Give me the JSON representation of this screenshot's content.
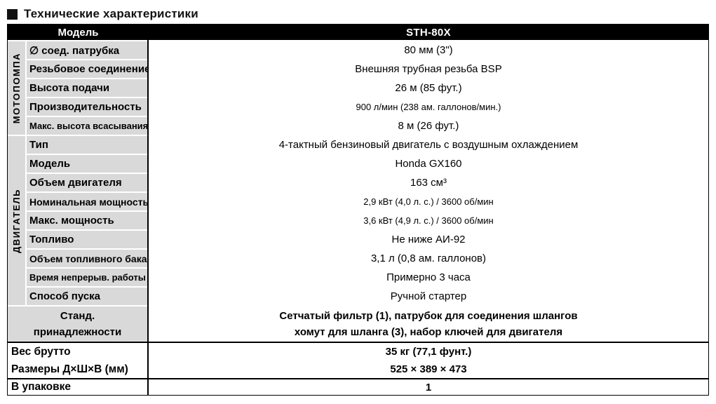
{
  "title": "Технические характеристики",
  "table": {
    "header": {
      "col1": "Модель",
      "col2": "STH-80X"
    },
    "sections": [
      {
        "name": "МОТОПОМПА",
        "rows": [
          {
            "label": "∅ соед. патрубка",
            "value": "80 мм (3\")"
          },
          {
            "label": "Резьбовое соединение",
            "value": "Внешняя трубная резьба BSP"
          },
          {
            "label": "Высота подачи",
            "value": "26 м (85 фут.)"
          },
          {
            "label": "Производительность",
            "value": "900 л/мин (238 ам. галлонов/мин.)"
          },
          {
            "label": "Макс. высота всасывания",
            "value": "8 м (26 фут.)"
          }
        ]
      },
      {
        "name": "ДВИГАТЕЛЬ",
        "rows": [
          {
            "label": "Тип",
            "value": "4-тактный бензиновый двигатель с воздушным охлаждением"
          },
          {
            "label": "Модель",
            "value": "Honda GX160"
          },
          {
            "label": "Объем двигателя",
            "value": "163 см³"
          },
          {
            "label": "Номинальная мощность",
            "value": "2,9 кВт (4,0 л. с.) / 3600 об/мин"
          },
          {
            "label": "Макс. мощность",
            "value": "3,6 кВт (4,9 л. с.) / 3600 об/мин"
          },
          {
            "label": "Топливо",
            "value": "Не ниже АИ-92"
          },
          {
            "label": "Объем топливного бака",
            "value": "3,1 л (0,8 ам. галлонов)"
          },
          {
            "label": "Время непрерыв. работы",
            "value": "Примерно 3 часа"
          },
          {
            "label": "Способ пуска",
            "value": "Ручной стартер"
          }
        ]
      }
    ],
    "accessories": {
      "label_line1": "Станд.",
      "label_line2": "принадлежности",
      "value_line1": "Сетчатый фильтр (1), патрубок для соединения шлангов",
      "value_line2": "хомут для шланга (3), набор ключей для двигателя"
    },
    "shipping": {
      "rows": [
        {
          "label": "Вес брутто",
          "value": "35 кг (77,1 фунт.)"
        },
        {
          "label": "Размеры Д×Ш×В (мм)",
          "value": "525 × 389 × 473"
        }
      ]
    },
    "packaging": {
      "label": "В упаковке",
      "value": "1"
    }
  },
  "colors": {
    "header_bg": "#000000",
    "label_bg": "#d9d9d9",
    "text": "#000000"
  }
}
